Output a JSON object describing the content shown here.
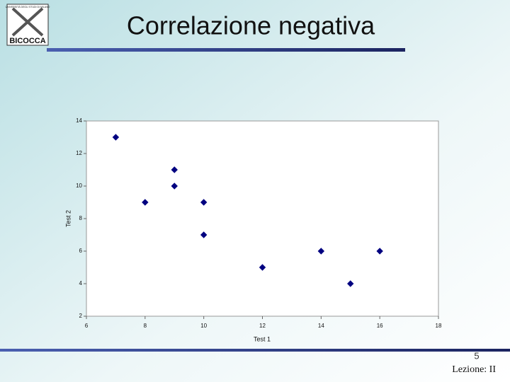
{
  "chart_data": {
    "type": "scatter",
    "title": "Correlazione negativa",
    "x_label": "Test 1",
    "y_label": "Test 2",
    "x": [
      7,
      9,
      9,
      8,
      10,
      10,
      12,
      14,
      16,
      15
    ],
    "values": [
      13,
      11,
      10,
      9,
      9,
      7,
      5,
      6,
      6,
      4
    ],
    "color": "#000080",
    "xlim": [
      6,
      18
    ],
    "xticks": [
      6,
      8,
      10,
      12,
      14,
      16,
      18
    ],
    "ylim": [
      2,
      14
    ],
    "yticks": [
      2,
      4,
      6,
      8,
      10,
      12,
      14
    ],
    "grid": false
  },
  "slide": {
    "page_number": "5",
    "footer": "Lezione: II",
    "logo": {
      "top": "UNIVERSITÀ DEGLI STUDI DI MILANO",
      "bottom": "BICOCCA"
    }
  }
}
